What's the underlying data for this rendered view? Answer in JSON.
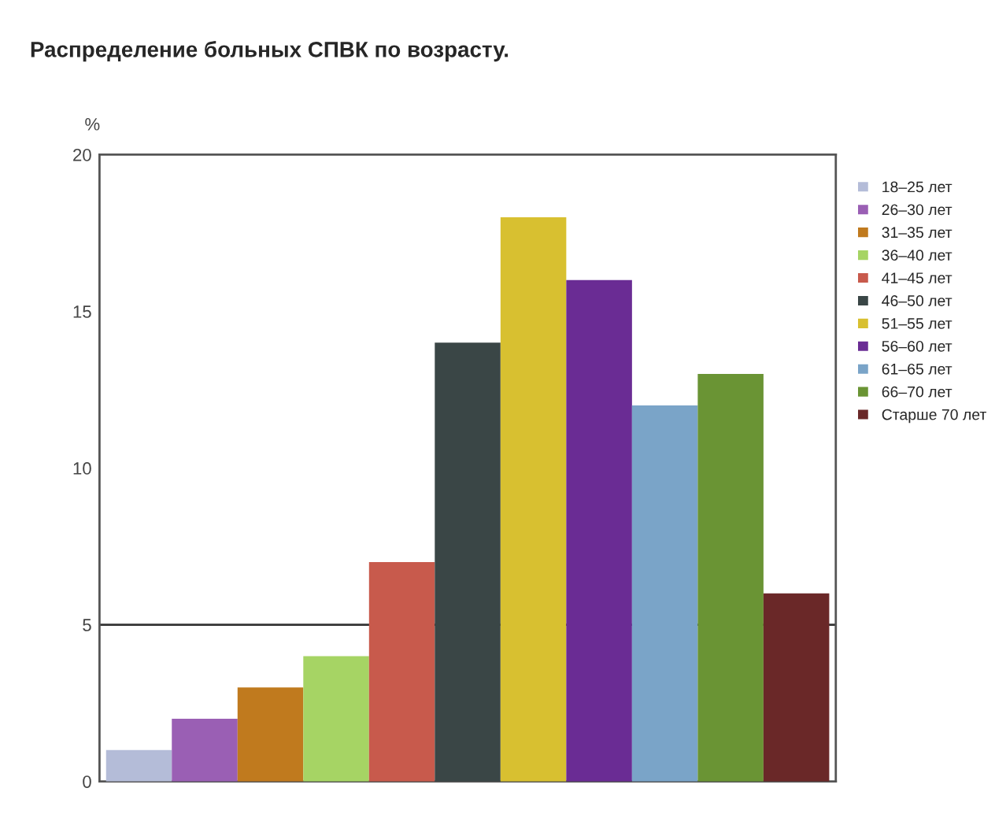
{
  "chart_data": {
    "type": "bar",
    "title": "Распределение больных СПВК по возрасту.",
    "ylabel": "%",
    "categories": [
      null,
      null,
      null,
      null,
      null,
      null,
      null,
      null,
      null,
      null,
      null
    ],
    "series": [
      {
        "name": "18–25 лет",
        "color": "#b4bcd8",
        "values": [
          1,
          null,
          null,
          null,
          null,
          null,
          null,
          null,
          null,
          null,
          null
        ]
      },
      {
        "name": "26–30 лет",
        "color": "#9a5fb4",
        "values": [
          null,
          2,
          null,
          null,
          null,
          null,
          null,
          null,
          null,
          null,
          null
        ]
      },
      {
        "name": "31–35 лет",
        "color": "#c07a1e",
        "values": [
          null,
          null,
          3,
          null,
          null,
          null,
          null,
          null,
          null,
          null,
          null
        ]
      },
      {
        "name": "36–40 лет",
        "color": "#a6d464",
        "values": [
          null,
          null,
          null,
          4,
          null,
          null,
          null,
          null,
          null,
          null,
          null
        ]
      },
      {
        "name": "41–45 лет",
        "color": "#c85a4c",
        "values": [
          null,
          null,
          null,
          null,
          7,
          null,
          null,
          null,
          null,
          null,
          null
        ]
      },
      {
        "name": "46–50 лет",
        "color": "#3a4646",
        "values": [
          null,
          null,
          null,
          null,
          null,
          14,
          null,
          null,
          null,
          null,
          null
        ]
      },
      {
        "name": "51–55 лет",
        "color": "#d8c030",
        "values": [
          null,
          null,
          null,
          null,
          null,
          null,
          18,
          null,
          null,
          null,
          null
        ]
      },
      {
        "name": "56–60 лет",
        "color": "#6a2c94",
        "values": [
          null,
          null,
          null,
          null,
          null,
          null,
          null,
          16,
          null,
          null,
          null
        ]
      },
      {
        "name": "61–65 лет",
        "color": "#7aa4c8",
        "values": [
          null,
          null,
          null,
          null,
          null,
          null,
          null,
          null,
          12,
          null,
          null
        ]
      },
      {
        "name": "66–70 лет",
        "color": "#6a9434",
        "values": [
          null,
          null,
          null,
          null,
          null,
          null,
          null,
          null,
          null,
          13,
          null
        ]
      },
      {
        "name": "Старше 70 лет",
        "color": "#6a2828",
        "values": [
          null,
          null,
          null,
          null,
          null,
          null,
          null,
          null,
          null,
          null,
          6
        ]
      }
    ],
    "ylim": [
      0,
      20
    ],
    "yticks": [
      0,
      5,
      10,
      15,
      20
    ],
    "ref_lines": [
      {
        "axis": "y",
        "value": 5,
        "color": "#333333",
        "line_style": "solid"
      }
    ],
    "grid": false,
    "legend": "right",
    "tick_labels": "y"
  }
}
